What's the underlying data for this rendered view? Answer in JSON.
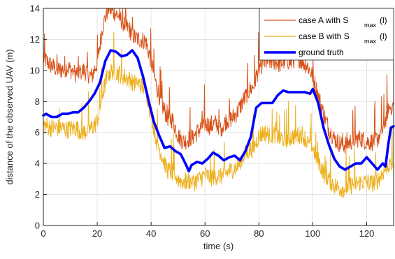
{
  "chart_data": {
    "type": "line",
    "xlabel": "time (s)",
    "ylabel": "distance of the observed UAV (m)",
    "xlim": [
      0,
      130
    ],
    "ylim": [
      0,
      14
    ],
    "xticks": [
      0,
      20,
      40,
      60,
      80,
      100,
      120
    ],
    "yticks": [
      0,
      2,
      4,
      6,
      8,
      10,
      12,
      14
    ],
    "grid": true,
    "legend_position": "top-right",
    "series": [
      {
        "name": "case A with S max (l)",
        "legend_main": "case A with S",
        "legend_sub": "max",
        "legend_tail": "(l)",
        "color": "#d95319",
        "style": "noisy",
        "points": [
          [
            0,
            10.8
          ],
          [
            3,
            10.3
          ],
          [
            6,
            10.0
          ],
          [
            9,
            10.2
          ],
          [
            12,
            9.8
          ],
          [
            15,
            10.0
          ],
          [
            18,
            9.6
          ],
          [
            20,
            10.5
          ],
          [
            22,
            12.8
          ],
          [
            24,
            14.0
          ],
          [
            26,
            13.8
          ],
          [
            28,
            13.5
          ],
          [
            30,
            13.0
          ],
          [
            32,
            12.6
          ],
          [
            34,
            12.1
          ],
          [
            36,
            12.0
          ],
          [
            38,
            11.9
          ],
          [
            40,
            10.6
          ],
          [
            42,
            9.0
          ],
          [
            44,
            7.8
          ],
          [
            46,
            7.0
          ],
          [
            48,
            6.8
          ],
          [
            50,
            5.8
          ],
          [
            52,
            5.4
          ],
          [
            54,
            5.6
          ],
          [
            56,
            5.8
          ],
          [
            58,
            6.2
          ],
          [
            60,
            6.6
          ],
          [
            62,
            6.4
          ],
          [
            64,
            6.6
          ],
          [
            66,
            6.3
          ],
          [
            68,
            6.8
          ],
          [
            70,
            6.9
          ],
          [
            72,
            7.3
          ],
          [
            74,
            8.0
          ],
          [
            76,
            8.6
          ],
          [
            78,
            9.0
          ],
          [
            80,
            10.2
          ],
          [
            82,
            10.5
          ],
          [
            84,
            10.6
          ],
          [
            86,
            10.6
          ],
          [
            88,
            10.4
          ],
          [
            90,
            10.7
          ],
          [
            92,
            10.5
          ],
          [
            94,
            10.9
          ],
          [
            96,
            10.6
          ],
          [
            98,
            10.3
          ],
          [
            100,
            9.6
          ],
          [
            102,
            8.4
          ],
          [
            104,
            7.2
          ],
          [
            106,
            6.2
          ],
          [
            108,
            5.6
          ],
          [
            110,
            5.3
          ],
          [
            112,
            5.2
          ],
          [
            114,
            5.4
          ],
          [
            116,
            5.6
          ],
          [
            118,
            5.6
          ],
          [
            120,
            5.4
          ],
          [
            122,
            5.4
          ],
          [
            124,
            5.6
          ],
          [
            126,
            6.2
          ],
          [
            128,
            7.5
          ],
          [
            130,
            7.8
          ]
        ]
      },
      {
        "name": "case B with S max (l)",
        "legend_main": "case B with S",
        "legend_sub": "max",
        "legend_tail": "(l)",
        "color": "#edb120",
        "style": "noisy",
        "points": [
          [
            0,
            6.5
          ],
          [
            3,
            6.3
          ],
          [
            6,
            6.3
          ],
          [
            9,
            6.2
          ],
          [
            12,
            6.3
          ],
          [
            15,
            6.0
          ],
          [
            18,
            6.3
          ],
          [
            20,
            6.7
          ],
          [
            22,
            8.5
          ],
          [
            24,
            9.8
          ],
          [
            26,
            10.0
          ],
          [
            28,
            9.8
          ],
          [
            30,
            9.6
          ],
          [
            32,
            9.4
          ],
          [
            34,
            9.2
          ],
          [
            36,
            9.1
          ],
          [
            38,
            8.8
          ],
          [
            40,
            7.2
          ],
          [
            42,
            5.5
          ],
          [
            44,
            4.5
          ],
          [
            46,
            3.6
          ],
          [
            48,
            3.4
          ],
          [
            50,
            3.0
          ],
          [
            52,
            2.8
          ],
          [
            54,
            2.9
          ],
          [
            56,
            2.8
          ],
          [
            58,
            3.0
          ],
          [
            60,
            3.3
          ],
          [
            62,
            3.1
          ],
          [
            64,
            3.2
          ],
          [
            66,
            3.2
          ],
          [
            68,
            3.4
          ],
          [
            70,
            3.6
          ],
          [
            72,
            3.8
          ],
          [
            74,
            4.4
          ],
          [
            76,
            4.8
          ],
          [
            78,
            5.0
          ],
          [
            80,
            5.8
          ],
          [
            82,
            6.0
          ],
          [
            84,
            5.8
          ],
          [
            86,
            5.9
          ],
          [
            88,
            5.6
          ],
          [
            90,
            5.6
          ],
          [
            92,
            5.7
          ],
          [
            94,
            5.8
          ],
          [
            96,
            5.9
          ],
          [
            98,
            5.4
          ],
          [
            100,
            5.0
          ],
          [
            102,
            4.2
          ],
          [
            104,
            3.4
          ],
          [
            106,
            3.0
          ],
          [
            108,
            2.6
          ],
          [
            110,
            2.4
          ],
          [
            112,
            2.4
          ],
          [
            114,
            2.6
          ],
          [
            116,
            2.7
          ],
          [
            118,
            2.8
          ],
          [
            120,
            2.8
          ],
          [
            122,
            2.7
          ],
          [
            124,
            2.9
          ],
          [
            126,
            3.4
          ],
          [
            128,
            3.9
          ],
          [
            130,
            4.0
          ]
        ]
      },
      {
        "name": "ground truth",
        "legend_main": "ground truth",
        "color": "#0000ff",
        "style": "thick",
        "points": [
          [
            0,
            7.1
          ],
          [
            1,
            7.2
          ],
          [
            3,
            7.0
          ],
          [
            5,
            7.0
          ],
          [
            7,
            7.2
          ],
          [
            9,
            7.2
          ],
          [
            11,
            7.3
          ],
          [
            13,
            7.3
          ],
          [
            15,
            7.6
          ],
          [
            17,
            8.0
          ],
          [
            19,
            8.5
          ],
          [
            21,
            9.2
          ],
          [
            23,
            10.6
          ],
          [
            25,
            11.3
          ],
          [
            27,
            11.2
          ],
          [
            29,
            10.9
          ],
          [
            31,
            11.0
          ],
          [
            33,
            11.3
          ],
          [
            35,
            10.8
          ],
          [
            37,
            9.6
          ],
          [
            39,
            8.1
          ],
          [
            41,
            6.7
          ],
          [
            43,
            5.8
          ],
          [
            45,
            5.0
          ],
          [
            47,
            5.1
          ],
          [
            49,
            4.8
          ],
          [
            51,
            4.6
          ],
          [
            53,
            3.9
          ],
          [
            54,
            3.5
          ],
          [
            55,
            3.9
          ],
          [
            57,
            4.1
          ],
          [
            59,
            4.0
          ],
          [
            61,
            4.3
          ],
          [
            63,
            4.7
          ],
          [
            65,
            4.5
          ],
          [
            67,
            4.2
          ],
          [
            69,
            4.4
          ],
          [
            71,
            4.5
          ],
          [
            73,
            4.2
          ],
          [
            75,
            4.8
          ],
          [
            77,
            5.7
          ],
          [
            79,
            7.6
          ],
          [
            81,
            7.9
          ],
          [
            83,
            7.9
          ],
          [
            85,
            7.9
          ],
          [
            87,
            8.4
          ],
          [
            89,
            8.7
          ],
          [
            91,
            8.6
          ],
          [
            93,
            8.6
          ],
          [
            95,
            8.6
          ],
          [
            97,
            8.6
          ],
          [
            99,
            8.5
          ],
          [
            100,
            8.8
          ],
          [
            102,
            7.9
          ],
          [
            104,
            6.3
          ],
          [
            106,
            5.2
          ],
          [
            108,
            4.3
          ],
          [
            110,
            3.8
          ],
          [
            112,
            3.6
          ],
          [
            114,
            3.8
          ],
          [
            116,
            4.0
          ],
          [
            118,
            4.0
          ],
          [
            120,
            4.4
          ],
          [
            122,
            4.0
          ],
          [
            124,
            3.6
          ],
          [
            126,
            4.0
          ],
          [
            127,
            3.8
          ],
          [
            128,
            5.2
          ],
          [
            129,
            6.3
          ],
          [
            130,
            6.4
          ]
        ]
      }
    ]
  }
}
